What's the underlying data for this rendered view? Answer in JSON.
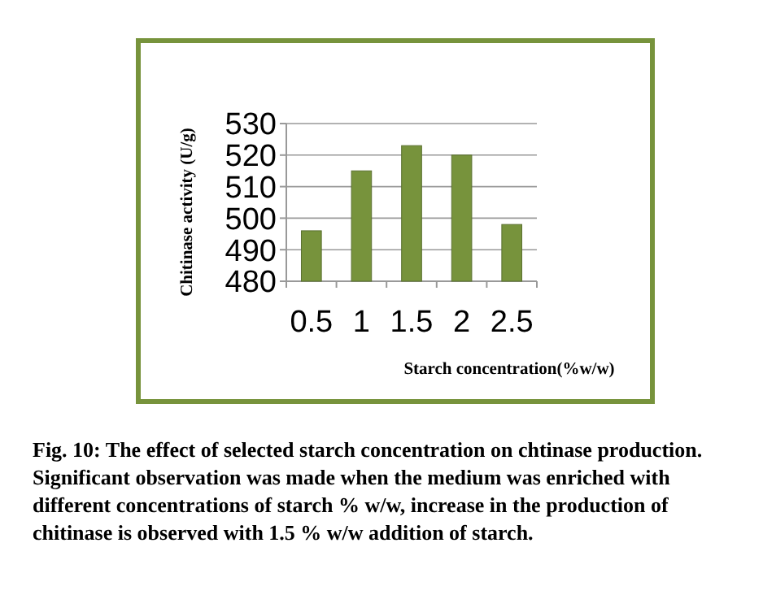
{
  "chart_data": {
    "type": "bar",
    "ylabel": "Chitinase activity (U/g)",
    "xlabel": "Starch concentration(%w/w)",
    "categories": [
      "0.5",
      "1",
      "1.5",
      "2",
      "2.5"
    ],
    "values": [
      496,
      515,
      523,
      520,
      498
    ],
    "color": "#77933c",
    "ylim": [
      480,
      530
    ],
    "yticks": [
      480,
      490,
      500,
      510,
      520,
      530
    ],
    "grid": "y",
    "annotations": [
      "Fig. 10: The effect of selected starch concentration on chtinase production. Significant observation was made when the medium was enriched with different concentrations of starch %  w/w, increase in the production of chitinase is observed with 1.5 % w/w addition of starch."
    ]
  }
}
